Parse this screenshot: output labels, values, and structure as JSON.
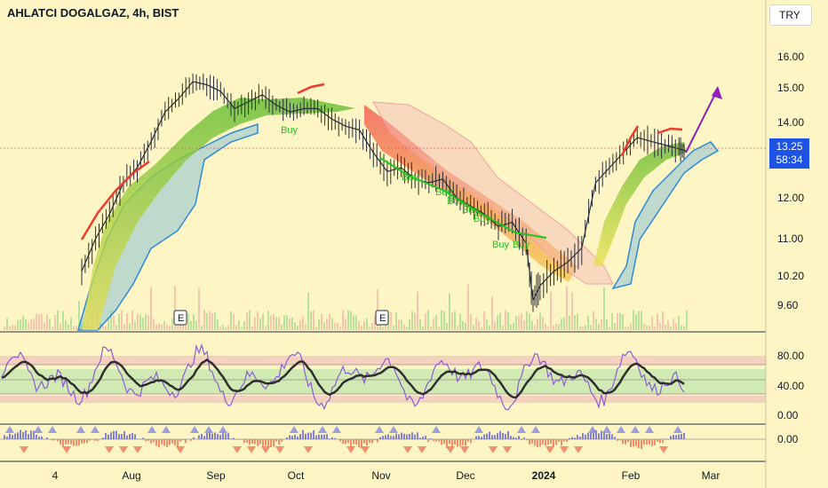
{
  "header": {
    "title": "AHLATCI DOGALGAZ, 4h, BIST",
    "currency": "TRY"
  },
  "last_price": {
    "price": "13.25",
    "countdown": "58:34"
  },
  "colors": {
    "background": "#fdf6c4",
    "price_line": "#2a2e39",
    "trend_up": "#ef3a2d",
    "projection": "#8f1fb8",
    "ribbon_green": "#7dc74a",
    "ribbon_yellow": "#f2e14a",
    "cloud_blue": "#4aa3df",
    "cloud_pink": "#f4b5b5",
    "buy_text": "#22c41c",
    "stoch_k": "#8e5ad8",
    "stoch_d": "#2f2f2f",
    "price_tag": "#1e53e5"
  },
  "chart_data": {
    "type": "line",
    "panes": [
      {
        "name": "price",
        "y_ticks": [
          "16.00",
          "15.00",
          "14.00",
          "12.00",
          "11.00",
          "10.20",
          "9.60"
        ],
        "y_tick_values": [
          16.0,
          15.0,
          14.0,
          12.0,
          11.0,
          10.2,
          9.6
        ],
        "series": [
          {
            "points": [
              [
                0,
                10.3
              ],
              [
                4,
                11.0
              ],
              [
                8,
                11.6
              ],
              [
                12,
                12.4
              ],
              [
                16,
                12.8
              ],
              [
                20,
                13.5
              ],
              [
                24,
                14.3
              ],
              [
                28,
                14.7
              ],
              [
                32,
                15.2
              ],
              [
                36,
                15.1
              ],
              [
                40,
                14.9
              ],
              [
                44,
                14.4
              ],
              [
                48,
                14.6
              ],
              [
                52,
                14.8
              ],
              [
                56,
                14.5
              ],
              [
                60,
                14.3
              ],
              [
                64,
                14.4
              ],
              [
                68,
                14.4
              ],
              [
                72,
                14.1
              ],
              [
                76,
                13.9
              ],
              [
                80,
                13.8
              ],
              [
                84,
                13.2
              ],
              [
                88,
                12.7
              ],
              [
                92,
                12.8
              ],
              [
                96,
                12.5
              ],
              [
                100,
                12.4
              ],
              [
                104,
                12.5
              ],
              [
                108,
                12.0
              ],
              [
                112,
                11.8
              ],
              [
                116,
                11.6
              ],
              [
                120,
                11.3
              ],
              [
                124,
                11.4
              ],
              [
                128,
                10.9
              ],
              [
                130,
                9.7
              ],
              [
                132,
                10.0
              ],
              [
                136,
                10.3
              ],
              [
                140,
                10.5
              ],
              [
                144,
                10.8
              ],
              [
                148,
                12.4
              ],
              [
                152,
                12.8
              ],
              [
                156,
                13.2
              ],
              [
                160,
                13.6
              ],
              [
                164,
                13.5
              ],
              [
                168,
                13.4
              ],
              [
                172,
                13.3
              ],
              [
                174,
                13.25
              ]
            ]
          }
        ],
        "annotations": {
          "buy_labels": [
            "Buy",
            "Buy",
            "Buy",
            "Buy",
            "Buy",
            "Buy",
            "Buy",
            "Buy"
          ],
          "earnings_markers": [
            "E",
            "E"
          ]
        }
      },
      {
        "name": "oscillator",
        "y_ticks": [
          "80.00",
          "40.00",
          "0.00"
        ],
        "y_tick_values": [
          80,
          40,
          0
        ],
        "bands": [
          [
            75,
            85
          ],
          [
            30,
            65
          ],
          [
            18,
            28
          ]
        ]
      },
      {
        "name": "histogram",
        "y_ticks": [
          "0.00"
        ],
        "y_tick_values": [
          0
        ]
      }
    ],
    "x_tick_labels": [
      "4",
      "Aug",
      "Sep",
      "Oct",
      "Nov",
      "Dec",
      "2024",
      "Feb",
      "Mar"
    ],
    "x_tick_bold": [
      false,
      false,
      false,
      false,
      false,
      false,
      true,
      false,
      false
    ]
  }
}
